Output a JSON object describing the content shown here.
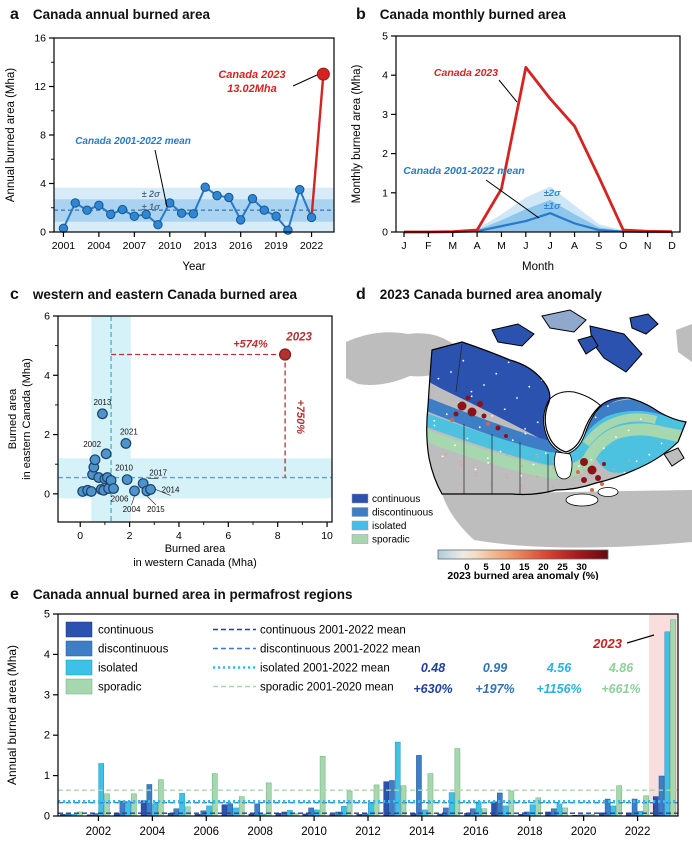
{
  "figure": {
    "panels": {
      "a": {
        "tag": "a"
      },
      "b": {
        "tag": "b"
      },
      "c": {
        "tag": "c"
      },
      "d": {
        "tag": "d"
      },
      "e": {
        "tag": "e"
      }
    }
  },
  "chart_data": [
    {
      "panel": "a",
      "type": "line",
      "title": "Canada annual burned area",
      "xlabel": "Year",
      "ylabel": "Annual burned area (Mha)",
      "ylim": [
        0,
        16
      ],
      "yticks": [
        0,
        4,
        8,
        12,
        16
      ],
      "yminor": [
        2,
        6,
        10,
        14
      ],
      "xticks": [
        2001,
        2004,
        2007,
        2010,
        2013,
        2016,
        2019,
        2022
      ],
      "years": [
        2001,
        2002,
        2003,
        2004,
        2005,
        2006,
        2007,
        2008,
        2009,
        2010,
        2011,
        2012,
        2013,
        2014,
        2015,
        2016,
        2017,
        2018,
        2019,
        2020,
        2021,
        2022
      ],
      "values": [
        0.3,
        2.4,
        1.8,
        2.2,
        1.45,
        1.85,
        1.3,
        1.45,
        0.6,
        2.4,
        1.55,
        1.5,
        3.7,
        3.0,
        2.85,
        1.0,
        2.75,
        1.8,
        1.3,
        0.15,
        3.5,
        1.2
      ],
      "mean": 1.8,
      "band_1sigma": [
        0.85,
        2.7
      ],
      "band_2sigma": [
        0.0,
        3.65
      ],
      "point_2023": {
        "year": 2023,
        "value": 13.02
      },
      "labels": {
        "y2023_line1": "Canada 2023",
        "y2023_line2": "13.02Mha",
        "mean": "Canada 2001-2022 mean",
        "sigma2": "± 2σ",
        "sigma1": "± 1σ"
      },
      "colors": {
        "line": "#2879c8",
        "marker": "#2f87d3",
        "marker_edge": "#17578f",
        "red": "#d32422",
        "band1": "#a9d3f1",
        "band2": "#d7ebf9",
        "mean_line": "#1e5fa3",
        "sigma_text": "#50708c"
      }
    },
    {
      "panel": "b",
      "type": "line",
      "title": "Canada monthly burned area",
      "xlabel": "Month",
      "ylabel": "Monthly burned area (Mha)",
      "months": [
        "J",
        "F",
        "M",
        "A",
        "M",
        "J",
        "J",
        "A",
        "S",
        "O",
        "N",
        "D"
      ],
      "ylim": [
        0,
        5
      ],
      "yticks": [
        0,
        1,
        2,
        3,
        4,
        5
      ],
      "series_2023": [
        0,
        0,
        0.01,
        0.05,
        1.1,
        4.2,
        3.4,
        2.7,
        1.4,
        0.05,
        0.02,
        0.01
      ],
      "series_mean": [
        0,
        0,
        0,
        0.02,
        0.15,
        0.28,
        0.48,
        0.22,
        0.05,
        0.01,
        0,
        0
      ],
      "band_1sigma_upper": [
        0,
        0,
        0,
        0.05,
        0.3,
        0.58,
        0.82,
        0.45,
        0.12,
        0.02,
        0,
        0
      ],
      "band_2sigma_upper": [
        0,
        0,
        0,
        0.08,
        0.45,
        0.88,
        1.16,
        0.68,
        0.2,
        0.04,
        0,
        0
      ],
      "labels": {
        "red": "Canada 2023",
        "mean": "Canada 2001-2022 mean",
        "sigma2": "±2σ",
        "sigma1": "±1σ"
      },
      "colors": {
        "red": "#d32422",
        "blue": "#2879c8",
        "band1": "#8ec6ec",
        "band2": "#cfe6f7"
      }
    },
    {
      "panel": "c",
      "type": "scatter",
      "title": "western and eastern Canada burned area",
      "xlabel_lines": [
        "Burned area",
        "in western Canada (Mha)"
      ],
      "ylabel_lines": [
        "Burned area",
        "in eastern Canada (Mha)"
      ],
      "xlim": [
        -0.9,
        10.2
      ],
      "ylim": [
        -0.95,
        6.0
      ],
      "xticks": [
        0,
        2,
        4,
        6,
        8,
        10
      ],
      "xminor": [
        1,
        3,
        5,
        7,
        9
      ],
      "yticks": [
        0,
        2,
        4,
        6
      ],
      "yminor": [
        1,
        3,
        5
      ],
      "points": [
        {
          "x": 0.1,
          "y": 0.08
        },
        {
          "x": 0.3,
          "y": 0.12
        },
        {
          "x": 0.45,
          "y": 0.08
        },
        {
          "x": 0.5,
          "y": 0.65
        },
        {
          "x": 0.55,
          "y": 0.9
        },
        {
          "x": 0.6,
          "y": 1.15
        },
        {
          "x": 0.75,
          "y": 0.55
        },
        {
          "x": 0.85,
          "y": 0.15
        },
        {
          "x": 0.9,
          "y": 2.7,
          "label": "2013",
          "lp": [
            0,
            -9
          ]
        },
        {
          "x": 0.95,
          "y": 0.12
        },
        {
          "x": 1.0,
          "y": 0.5
        },
        {
          "x": 1.05,
          "y": 1.35,
          "label": "2002",
          "lp": [
            -14,
            -7
          ]
        },
        {
          "x": 1.1,
          "y": 0.55
        },
        {
          "x": 1.15,
          "y": 0.18
        },
        {
          "x": 1.25,
          "y": 0.45
        },
        {
          "x": 1.35,
          "y": 0.18,
          "label": "2006",
          "lp": [
            6,
            13
          ]
        },
        {
          "x": 1.85,
          "y": 1.7,
          "label": "2021",
          "lp": [
            3,
            -9
          ]
        },
        {
          "x": 1.9,
          "y": 0.48,
          "label": "2010",
          "lp": [
            -3,
            -9
          ]
        },
        {
          "x": 2.2,
          "y": 0.1,
          "label": "2004",
          "lp": [
            -3,
            21
          ],
          "leader": true
        },
        {
          "x": 2.55,
          "y": 0.35,
          "label": "2017",
          "lp": [
            15,
            -8
          ],
          "leader": true
        },
        {
          "x": 2.7,
          "y": 0.1,
          "label": "2015",
          "lp": [
            9,
            21
          ],
          "leader": true
        },
        {
          "x": 2.85,
          "y": 0.15,
          "label": "2014",
          "lp": [
            20,
            3
          ],
          "leader": true
        }
      ],
      "point_2023": {
        "x": 8.3,
        "y": 4.7,
        "label": "2023"
      },
      "pct_x": "+574%",
      "pct_y": "+750%",
      "mean_x": 1.25,
      "mean_y": 0.55,
      "band_x": [
        0.45,
        2.05
      ],
      "band_y": [
        -0.15,
        1.2
      ],
      "colors": {
        "dot": "#4e94cc",
        "dot_edge": "#1d4169",
        "red": "#b23232",
        "teal": "#3fb4cf",
        "band": "#d6f2f9"
      }
    },
    {
      "panel": "d",
      "type": "map",
      "title": "2023 Canada burned area anomaly",
      "legend": [
        "continuous",
        "discontinuous",
        "isolated",
        "sporadic"
      ],
      "legend_colors": [
        "#2a52ae",
        "#3d7ec6",
        "#41bfe6",
        "#a6d7ae"
      ],
      "colorbar": {
        "ticks": [
          0,
          5,
          10,
          15,
          20,
          25,
          30
        ],
        "label": "2023 burned area anomaly (%)",
        "stops": [
          {
            "o": 0,
            "c": "#aeccdd"
          },
          {
            "o": 0.08,
            "c": "#cfe0e6"
          },
          {
            "o": 0.15,
            "c": "#eeeae2"
          },
          {
            "o": 0.22,
            "c": "#f3ddc4"
          },
          {
            "o": 0.32,
            "c": "#f2bb93"
          },
          {
            "o": 0.42,
            "c": "#ef9a6e"
          },
          {
            "o": 0.52,
            "c": "#e77350"
          },
          {
            "o": 0.62,
            "c": "#da4c38"
          },
          {
            "o": 0.72,
            "c": "#c62f28"
          },
          {
            "o": 0.82,
            "c": "#a81a1d"
          },
          {
            "o": 0.91,
            "c": "#871016"
          },
          {
            "o": 1,
            "c": "#650a10"
          }
        ]
      },
      "map_colors": {
        "land": "#bdbdbd",
        "continuous": "#2a52ae",
        "discontinuous": "#3d7ec6",
        "isolated": "#4cc2e0",
        "sporadic": "#a6d7ae",
        "anomaly": "#8e1117",
        "anomaly_light": "#cf6a4e",
        "speckle_pink": "#dfa191"
      }
    },
    {
      "panel": "e",
      "type": "bar",
      "title": "Canada annual burned area in permafrost regions",
      "ylabel": "Annual burned area (Mha)",
      "ylim": [
        0,
        5
      ],
      "yticks": [
        0,
        1,
        2,
        3,
        4,
        5
      ],
      "years": [
        2001,
        2002,
        2003,
        2004,
        2005,
        2006,
        2007,
        2008,
        2009,
        2010,
        2011,
        2012,
        2013,
        2014,
        2015,
        2016,
        2017,
        2018,
        2019,
        2020,
        2021,
        2022,
        2023
      ],
      "xticks": [
        2002,
        2004,
        2006,
        2008,
        2010,
        2012,
        2014,
        2016,
        2018,
        2020,
        2022
      ],
      "series": [
        {
          "name": "continuous",
          "color": "#2a52ae",
          "edge": "#1a3a80",
          "mean": 0.07,
          "mean_label": "continuous 2001-2022 mean",
          "mean_color": "#24418f",
          "values": [
            0.04,
            0.03,
            0.06,
            0.38,
            0.07,
            0.04,
            0.28,
            0.05,
            0.07,
            0.05,
            0.04,
            0.04,
            0.85,
            0.06,
            0.05,
            0.07,
            0.35,
            0.04,
            0.1,
            0.02,
            0.08,
            0.08,
            0.48
          ]
        },
        {
          "name": "discontinuous",
          "color": "#3d7ec6",
          "edge": "#275e96",
          "mean": 0.33,
          "mean_label": "discontinuous 2001-2022 mean",
          "mean_color": "#3c7cc0",
          "values": [
            0.05,
            0.06,
            0.37,
            0.78,
            0.18,
            0.13,
            0.3,
            0.3,
            0.1,
            0.2,
            0.1,
            0.06,
            0.88,
            1.5,
            0.2,
            0.18,
            0.57,
            0.1,
            0.18,
            0.03,
            0.42,
            0.42,
            0.99
          ]
        },
        {
          "name": "isolated",
          "color": "#3ec1e9",
          "edge": "#1f96c0",
          "mean": 0.36,
          "mean_label": "isolated 2001-2022 mean",
          "mean_color": "#35b9e6",
          "values": [
            0.04,
            1.3,
            0.36,
            0.3,
            0.56,
            0.25,
            0.2,
            0.05,
            0.14,
            0.15,
            0.24,
            0.33,
            1.83,
            0.15,
            0.58,
            0.35,
            0.25,
            0.28,
            0.3,
            0.03,
            0.25,
            0.12,
            4.56
          ]
        },
        {
          "name": "sporadic",
          "color": "#a6d7ae",
          "edge": "#6aae76",
          "mean": 0.64,
          "mean_label": "sporadic 2001-2020 mean",
          "mean_color": "#a8d8ab",
          "values": [
            0.1,
            0.55,
            0.55,
            0.9,
            0.23,
            1.05,
            0.48,
            0.82,
            0.06,
            1.48,
            0.62,
            0.77,
            0.75,
            1.05,
            1.67,
            0.18,
            0.62,
            0.45,
            0.2,
            0.04,
            0.75,
            0.5,
            4.86
          ]
        }
      ],
      "annotations_2023": [
        {
          "value": "0.48",
          "pct": "+630%",
          "color": "#1e3f9c"
        },
        {
          "value": "0.99",
          "pct": "+197%",
          "color": "#2f74b8"
        },
        {
          "value": "4.56",
          "pct": "+1156%",
          "color": "#28b2e0"
        },
        {
          "value": "4.86",
          "pct": "+661%",
          "color": "#8fcf9a"
        }
      ],
      "label_2023": "2023",
      "label_2023_color": "#cc1f1f",
      "highlight_year": 2023,
      "highlight_color": "#fadddd"
    }
  ]
}
